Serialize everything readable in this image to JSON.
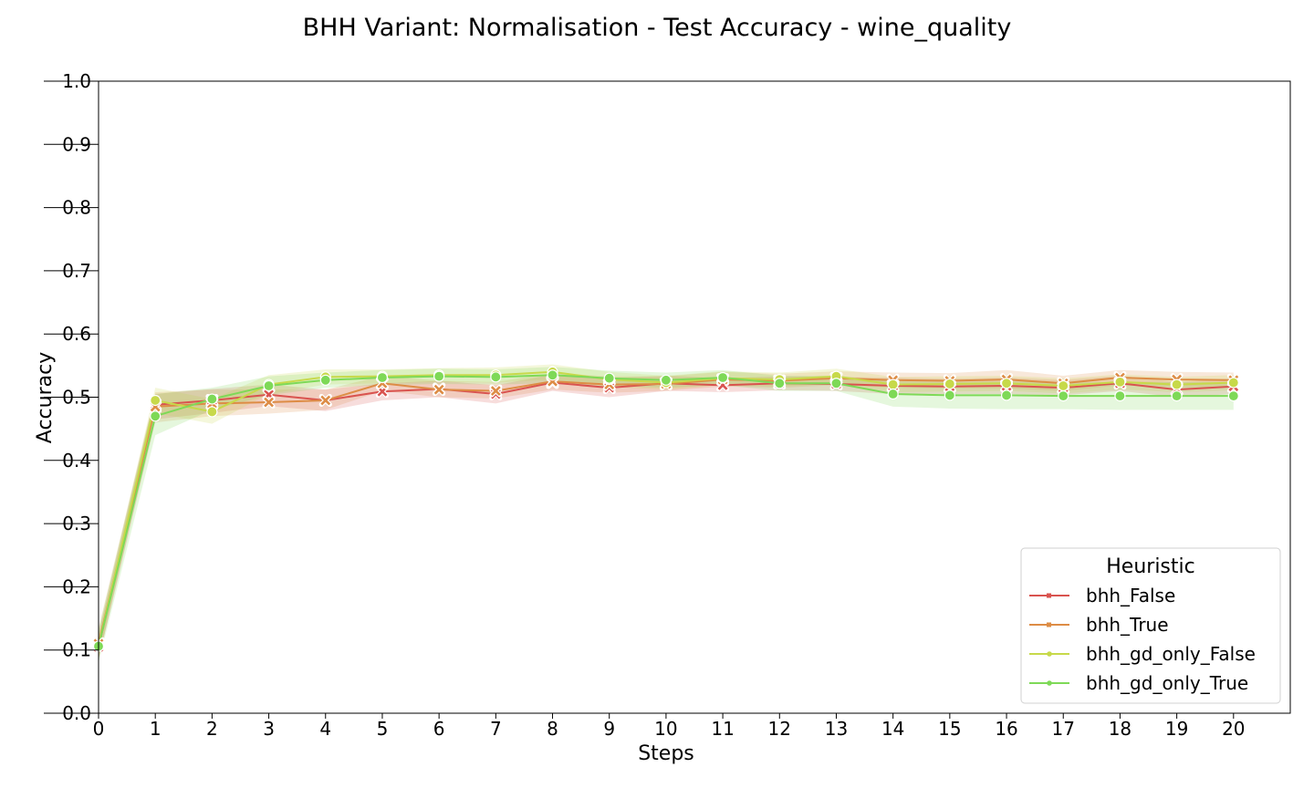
{
  "chart_data": {
    "type": "line",
    "title": "BHH Variant: Normalisation - Test Accuracy - wine_quality",
    "xlabel": "Steps",
    "ylabel": "Accuracy",
    "xlim": [
      0,
      21
    ],
    "ylim": [
      0.0,
      1.0
    ],
    "x_ticks": [
      0,
      1,
      2,
      3,
      4,
      5,
      6,
      7,
      8,
      9,
      10,
      11,
      12,
      13,
      14,
      15,
      16,
      17,
      18,
      19,
      20
    ],
    "y_ticks": [
      0.0,
      0.1,
      0.2,
      0.3,
      0.4,
      0.5,
      0.6,
      0.7,
      0.8,
      0.9,
      1.0
    ],
    "y_tick_labels": [
      "0.0",
      "0.1",
      "0.2",
      "0.3",
      "0.4",
      "0.5",
      "0.6",
      "0.7",
      "0.8",
      "0.9",
      "1.0"
    ],
    "grid": false,
    "legend": {
      "title": "Heuristic",
      "placement": "lower-right"
    },
    "x": [
      0,
      1,
      2,
      3,
      4,
      5,
      6,
      7,
      8,
      9,
      10,
      11,
      12,
      13,
      14,
      15,
      16,
      17,
      18,
      19,
      20
    ],
    "series": [
      {
        "name": "bhh_False",
        "color": "#d9534f",
        "marker": "x",
        "values": [
          0.105,
          0.488,
          0.495,
          0.504,
          0.495,
          0.509,
          0.513,
          0.505,
          0.523,
          0.515,
          0.522,
          0.519,
          0.522,
          0.521,
          0.518,
          0.517,
          0.518,
          0.515,
          0.522,
          0.512,
          0.517
        ],
        "lower": [
          0.085,
          0.465,
          0.475,
          0.486,
          0.478,
          0.495,
          0.5,
          0.49,
          0.51,
          0.5,
          0.51,
          0.508,
          0.511,
          0.51,
          0.505,
          0.505,
          0.505,
          0.503,
          0.51,
          0.5,
          0.505
        ],
        "upper": [
          0.125,
          0.505,
          0.513,
          0.52,
          0.512,
          0.522,
          0.526,
          0.519,
          0.536,
          0.53,
          0.534,
          0.53,
          0.533,
          0.532,
          0.531,
          0.529,
          0.531,
          0.527,
          0.534,
          0.524,
          0.529
        ]
      },
      {
        "name": "bhh_True",
        "color": "#dd8c45",
        "marker": "x",
        "values": [
          0.11,
          0.485,
          0.49,
          0.492,
          0.495,
          0.522,
          0.512,
          0.51,
          0.525,
          0.52,
          0.521,
          0.528,
          0.526,
          0.53,
          0.527,
          0.526,
          0.528,
          0.522,
          0.531,
          0.528,
          0.527
        ],
        "lower": [
          0.085,
          0.46,
          0.47,
          0.474,
          0.48,
          0.51,
          0.5,
          0.498,
          0.512,
          0.507,
          0.51,
          0.517,
          0.515,
          0.519,
          0.515,
          0.514,
          0.514,
          0.51,
          0.519,
          0.516,
          0.515
        ],
        "upper": [
          0.135,
          0.508,
          0.512,
          0.512,
          0.512,
          0.534,
          0.526,
          0.524,
          0.538,
          0.533,
          0.533,
          0.54,
          0.537,
          0.541,
          0.539,
          0.538,
          0.543,
          0.534,
          0.543,
          0.54,
          0.539
        ]
      },
      {
        "name": "bhh_gd_only_False",
        "color": "#c7d94a",
        "marker": "o",
        "values": [
          0.106,
          0.495,
          0.477,
          0.52,
          0.532,
          0.533,
          0.535,
          0.535,
          0.54,
          0.528,
          0.523,
          0.53,
          0.528,
          0.533,
          0.52,
          0.521,
          0.522,
          0.518,
          0.524,
          0.52,
          0.523
        ],
        "lower": [
          0.086,
          0.475,
          0.458,
          0.505,
          0.52,
          0.522,
          0.524,
          0.523,
          0.528,
          0.516,
          0.512,
          0.519,
          0.517,
          0.521,
          0.508,
          0.509,
          0.51,
          0.506,
          0.512,
          0.508,
          0.511
        ],
        "upper": [
          0.126,
          0.515,
          0.497,
          0.535,
          0.544,
          0.544,
          0.546,
          0.547,
          0.552,
          0.54,
          0.534,
          0.541,
          0.539,
          0.545,
          0.532,
          0.533,
          0.534,
          0.53,
          0.536,
          0.532,
          0.535
        ]
      },
      {
        "name": "bhh_gd_only_True",
        "color": "#7ed957",
        "marker": "o",
        "values": [
          0.106,
          0.47,
          0.497,
          0.518,
          0.527,
          0.531,
          0.533,
          0.532,
          0.535,
          0.53,
          0.527,
          0.531,
          0.522,
          0.522,
          0.505,
          0.503,
          0.503,
          0.502,
          0.502,
          0.502,
          0.502
        ],
        "lower": [
          0.08,
          0.44,
          0.48,
          0.503,
          0.515,
          0.519,
          0.521,
          0.52,
          0.522,
          0.518,
          0.515,
          0.519,
          0.51,
          0.51,
          0.485,
          0.482,
          0.481,
          0.481,
          0.48,
          0.48,
          0.48
        ],
        "upper": [
          0.132,
          0.505,
          0.515,
          0.533,
          0.539,
          0.543,
          0.545,
          0.544,
          0.548,
          0.542,
          0.539,
          0.543,
          0.534,
          0.534,
          0.525,
          0.524,
          0.525,
          0.523,
          0.524,
          0.524,
          0.524
        ]
      }
    ]
  }
}
